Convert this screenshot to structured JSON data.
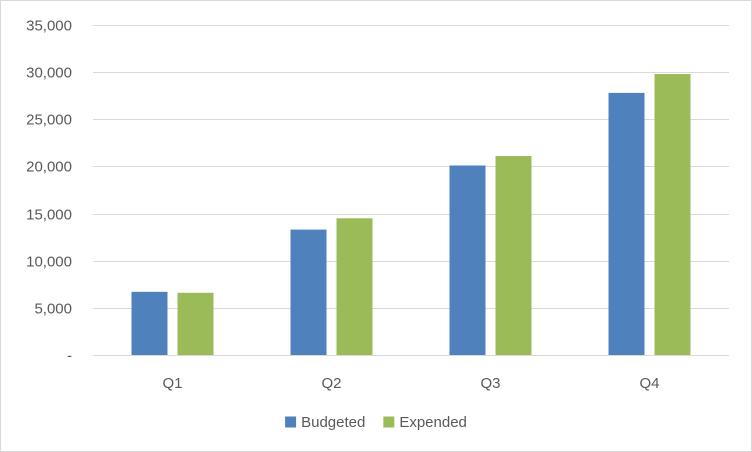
{
  "chart_data": {
    "type": "bar",
    "title": "",
    "xlabel": "",
    "ylabel": "",
    "categories": [
      "Q1",
      "Q2",
      "Q3",
      "Q4"
    ],
    "series": [
      {
        "name": "Budgeted",
        "values": [
          6700,
          13300,
          20100,
          27800
        ],
        "color": "#4f81bd"
      },
      {
        "name": "Expended",
        "values": [
          6600,
          14500,
          21100,
          29800
        ],
        "color": "#9bbb59"
      }
    ],
    "ylim": [
      0,
      35000
    ],
    "y_ticks": [
      0,
      5000,
      10000,
      15000,
      20000,
      25000,
      30000,
      35000
    ],
    "y_tick_labels": [
      "-",
      "5,000",
      "10,000",
      "15,000",
      "20,000",
      "25,000",
      "30,000",
      "35,000"
    ],
    "grid": true,
    "legend_position": "bottom",
    "gridline_color": "#d9d9d9",
    "axis_text_color": "#595959"
  }
}
